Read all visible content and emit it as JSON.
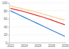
{
  "chart_data": {
    "type": "line",
    "categories": [
      "2022",
      null,
      "2024",
      null,
      "2026",
      null,
      "2028",
      null,
      "2030"
    ],
    "series": [
      {
        "color": "#f5a623",
        "line_style": "dotted",
        "values": [
          92,
          88,
          84,
          80,
          76,
          71,
          66,
          61,
          56
        ]
      },
      {
        "color": "#e0262b",
        "line_style": "solid",
        "values": [
          86,
          82,
          78,
          73,
          68,
          63,
          57,
          51,
          45
        ]
      },
      {
        "color": "#2b7bd8",
        "line_style": "solid",
        "values": [
          80,
          72,
          64,
          56,
          48,
          40,
          32,
          24,
          16
        ]
      }
    ],
    "ylim": [
      0,
      100
    ],
    "yticks": [
      0,
      20,
      40,
      60,
      80,
      100
    ],
    "grid": true
  }
}
